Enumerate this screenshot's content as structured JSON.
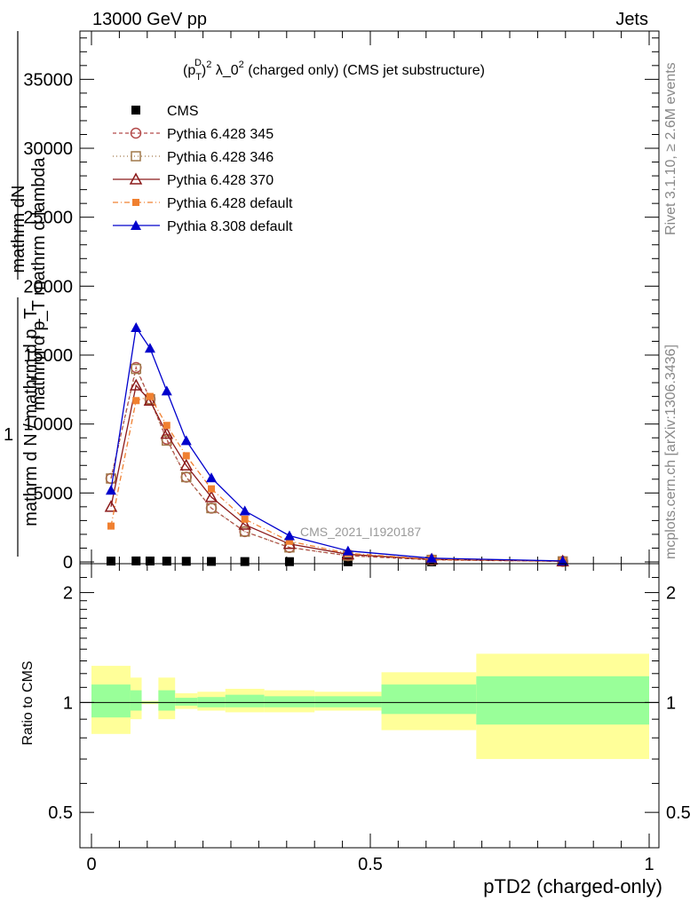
{
  "header": {
    "left": "13000 GeV pp",
    "right": "Jets"
  },
  "side_labels": {
    "rivet": "Rivet 3.1.10, ≥ 2.6M events",
    "mcplots": "mcplots.cern.ch [arXiv:1306.3436]"
  },
  "watermark": "CMS_2021_I1920187",
  "y_label_stack": [
    "mathrm dN",
    "mathrm d p_T mathrm d lambda",
    "1",
    "mathrm d N / mathrm d p_T"
  ],
  "ratio_ylabel": "Ratio to CMS",
  "chart_data": [
    {
      "type": "line",
      "title": "(p_T^D)^2 λ_0^2 (charged only) (CMS jet substructure)",
      "xlabel": "pTD2 (charged-only)",
      "ylabel": "",
      "xlim": [
        0,
        1.0
      ],
      "ylim": [
        0,
        38500
      ],
      "x_ticks": [
        0,
        0.5,
        1
      ],
      "x_tick_labels": [
        "0",
        "0.5",
        "1"
      ],
      "y_ticks": [
        0,
        5000,
        10000,
        15000,
        20000,
        25000,
        30000,
        35000
      ],
      "y_tick_labels": [
        "0",
        "5000",
        "10000",
        "15000",
        "20000",
        "25000",
        "30000",
        "35000"
      ],
      "legend_placement": "top-left",
      "x": [
        0.035,
        0.08,
        0.105,
        0.135,
        0.17,
        0.215,
        0.275,
        0.355,
        0.46,
        0.61,
        0.845
      ],
      "series": [
        {
          "name": "CMS",
          "color": "#000000",
          "marker": "square-filled",
          "dash": "none",
          "values": [
            60,
            70,
            65,
            55,
            45,
            35,
            25,
            18,
            12,
            6,
            2
          ]
        },
        {
          "name": "Pythia 6.428 345",
          "color": "#b34a4a",
          "marker": "circle-open",
          "dash": "4,3",
          "values": [
            6050,
            14100,
            11800,
            8900,
            6150,
            3900,
            2200,
            1050,
            450,
            150,
            40
          ]
        },
        {
          "name": "Pythia 6.428 346",
          "color": "#a0784a",
          "marker": "square-open",
          "dash": "1,3",
          "values": [
            6050,
            14000,
            11800,
            8800,
            6150,
            3900,
            2200,
            1050,
            450,
            150,
            40
          ]
        },
        {
          "name": "Pythia 6.428 370",
          "color": "#8b1a1a",
          "marker": "triangle-open",
          "dash": "none",
          "values": [
            4000,
            12800,
            11700,
            9300,
            7000,
            4700,
            2700,
            1300,
            550,
            180,
            50
          ]
        },
        {
          "name": "Pythia 6.428 default",
          "color": "#f08030",
          "marker": "square-filled-small",
          "dash": "6,3,1,3",
          "values": [
            2600,
            11700,
            12000,
            9900,
            7700,
            5300,
            3100,
            1500,
            620,
            200,
            55
          ]
        },
        {
          "name": "Pythia 8.308 default",
          "color": "#0000cc",
          "marker": "triangle-filled",
          "dash": "none",
          "values": [
            5200,
            17000,
            15500,
            12400,
            8800,
            6100,
            3700,
            1900,
            800,
            270,
            70
          ]
        }
      ]
    },
    {
      "type": "area",
      "title": "",
      "xlabel": "pTD2 (charged-only)",
      "ylabel": "Ratio to CMS",
      "xlim": [
        0,
        1.0
      ],
      "ylim": [
        0.4,
        2.4
      ],
      "log_y": true,
      "y_ticks": [
        0.5,
        1,
        2
      ],
      "y_tick_labels": [
        "0.5",
        "1",
        "2"
      ],
      "reference_line": 1,
      "bands": [
        {
          "x0": 0.0,
          "x1": 0.07,
          "yellow": [
            0.82,
            1.26
          ],
          "green": [
            0.91,
            1.12
          ]
        },
        {
          "x0": 0.07,
          "x1": 0.09,
          "yellow": [
            0.9,
            1.17
          ],
          "green": [
            0.95,
            1.08
          ]
        },
        {
          "x0": 0.09,
          "x1": 0.12,
          "yellow": [
            0.99,
            1.01
          ],
          "green": [
            0.995,
            1.005
          ]
        },
        {
          "x0": 0.12,
          "x1": 0.15,
          "yellow": [
            0.9,
            1.17
          ],
          "green": [
            0.95,
            1.08
          ]
        },
        {
          "x0": 0.15,
          "x1": 0.19,
          "yellow": [
            0.96,
            1.06
          ],
          "green": [
            0.98,
            1.03
          ]
        },
        {
          "x0": 0.19,
          "x1": 0.24,
          "yellow": [
            0.95,
            1.07
          ],
          "green": [
            0.97,
            1.035
          ]
        },
        {
          "x0": 0.24,
          "x1": 0.31,
          "yellow": [
            0.94,
            1.09
          ],
          "green": [
            0.97,
            1.05
          ]
        },
        {
          "x0": 0.31,
          "x1": 0.4,
          "yellow": [
            0.94,
            1.08
          ],
          "green": [
            0.97,
            1.04
          ]
        },
        {
          "x0": 0.4,
          "x1": 0.52,
          "yellow": [
            0.95,
            1.07
          ],
          "green": [
            0.97,
            1.04
          ]
        },
        {
          "x0": 0.52,
          "x1": 0.69,
          "yellow": [
            0.84,
            1.21
          ],
          "green": [
            0.93,
            1.12
          ]
        },
        {
          "x0": 0.69,
          "x1": 1.0,
          "yellow": [
            0.7,
            1.36
          ],
          "green": [
            0.87,
            1.18
          ]
        }
      ]
    }
  ]
}
